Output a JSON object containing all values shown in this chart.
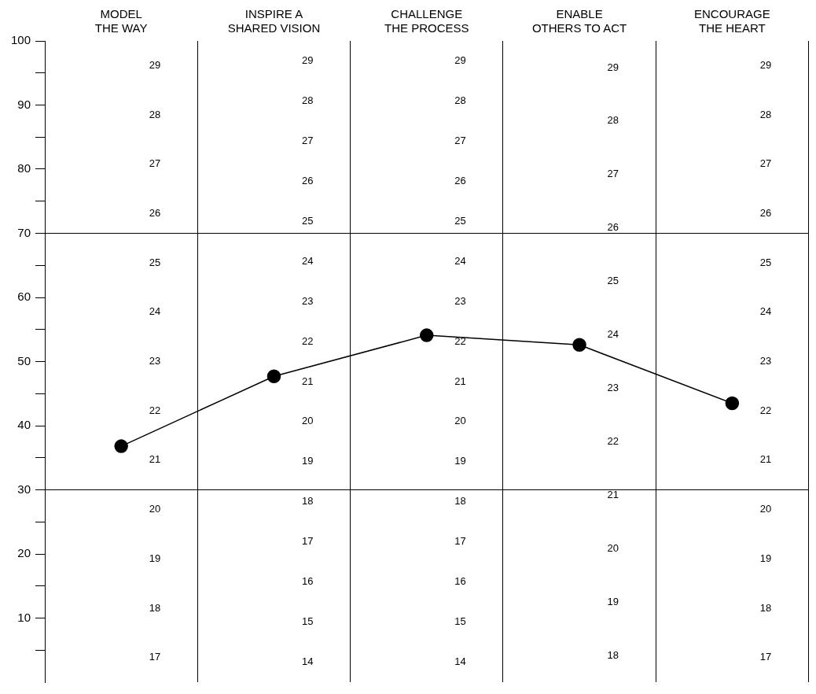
{
  "chart_data": {
    "type": "line",
    "categories": [
      "MODEL\nTHE WAY",
      "INSPIRE A\nSHARED VISION",
      "CHALLENGE\nTHE PROCESS",
      "ENABLE\nOTHERS TO ACT",
      "ENCOURAGE\nTHE HEART"
    ],
    "series": [
      {
        "color": "#000000",
        "values": [
          36.8,
          47.7,
          54.1,
          52.6,
          43.5
        ]
      }
    ],
    "ylim": [
      0,
      100
    ],
    "yticks": [
      {
        "value": 5,
        "label": null
      },
      10,
      {
        "value": 15,
        "label": null
      },
      20,
      {
        "value": 25,
        "label": null
      },
      30,
      {
        "value": 35,
        "label": null
      },
      40,
      {
        "value": 45,
        "label": null
      },
      50,
      {
        "value": 55,
        "label": null
      },
      60,
      {
        "value": 65,
        "label": null
      },
      70,
      {
        "value": 75,
        "label": null
      },
      80,
      {
        "value": 85,
        "label": null
      },
      90,
      {
        "value": 95,
        "label": null
      },
      100
    ],
    "grid": "x",
    "legend": false,
    "marker": "circle",
    "line_style": "solid",
    "ref_lines": [
      {
        "axis": "y",
        "value": 70,
        "color": "#000000"
      },
      {
        "axis": "y",
        "value": 30,
        "color": "#000000"
      }
    ],
    "annotations": [
      "29",
      "28",
      "27",
      "26",
      "25",
      "24",
      "23",
      "22",
      "21",
      "20",
      "19",
      "18",
      "17",
      "29",
      "28",
      "27",
      "26",
      "25",
      "24",
      "23",
      "22",
      "21",
      "20",
      "19",
      "18",
      "17",
      "16",
      "15",
      "14",
      "29",
      "28",
      "27",
      "26",
      "25",
      "24",
      "23",
      "22",
      "21",
      "20",
      "19",
      "18",
      "17",
      "16",
      "15",
      "14",
      "29",
      "28",
      "27",
      "26",
      "25",
      "24",
      "23",
      "22",
      "21",
      "20",
      "19",
      "18",
      "29",
      "28",
      "27",
      "26",
      "25",
      "24",
      "23",
      "22",
      "21",
      "20",
      "19",
      "18",
      "17"
    ]
  }
}
